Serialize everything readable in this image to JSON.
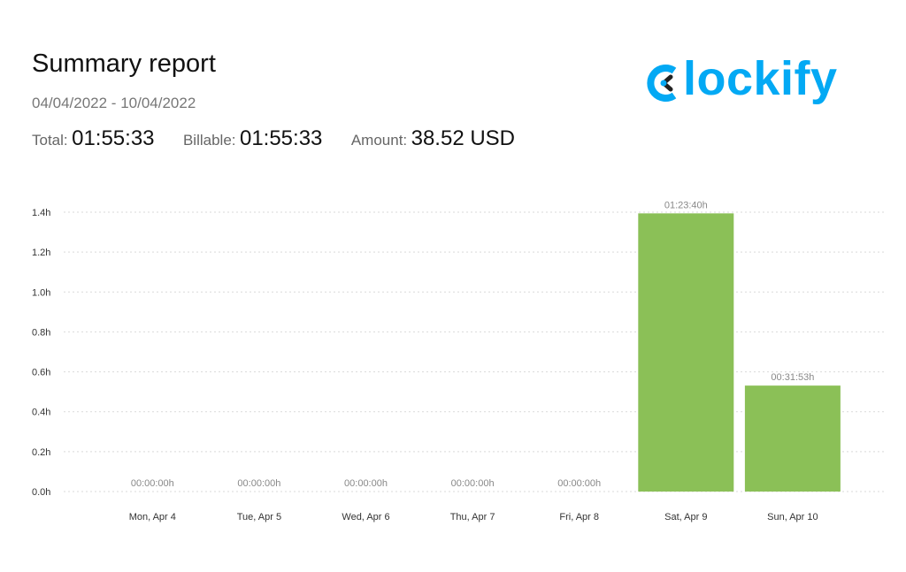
{
  "report": {
    "title": "Summary report",
    "date_range": "04/04/2022 - 10/04/2022",
    "total_label": "Total:",
    "total_value": "01:55:33",
    "billable_label": "Billable:",
    "billable_value": "01:55:33",
    "amount_label": "Amount:",
    "amount_value": "38.52 USD"
  },
  "logo": {
    "text": "lockify",
    "color": "#03a9f4"
  },
  "chart_data": {
    "type": "bar",
    "categories": [
      "Mon, Apr 4",
      "Tue, Apr 5",
      "Wed, Apr 6",
      "Thu, Apr 7",
      "Fri, Apr 8",
      "Sat, Apr 9",
      "Sun, Apr 10"
    ],
    "values": [
      0,
      0,
      0,
      0,
      0,
      1.394,
      0.531
    ],
    "data_labels": [
      "00:00:00h",
      "00:00:00h",
      "00:00:00h",
      "00:00:00h",
      "00:00:00h",
      "01:23:40h",
      "00:31:53h"
    ],
    "yticks": [
      "0.0h",
      "0.2h",
      "0.4h",
      "0.6h",
      "0.8h",
      "1.0h",
      "1.2h",
      "1.4h"
    ],
    "ylim": [
      0,
      1.4
    ],
    "grid": true,
    "bar_color": "#8bc057",
    "title": "",
    "xlabel": "",
    "ylabel": ""
  }
}
